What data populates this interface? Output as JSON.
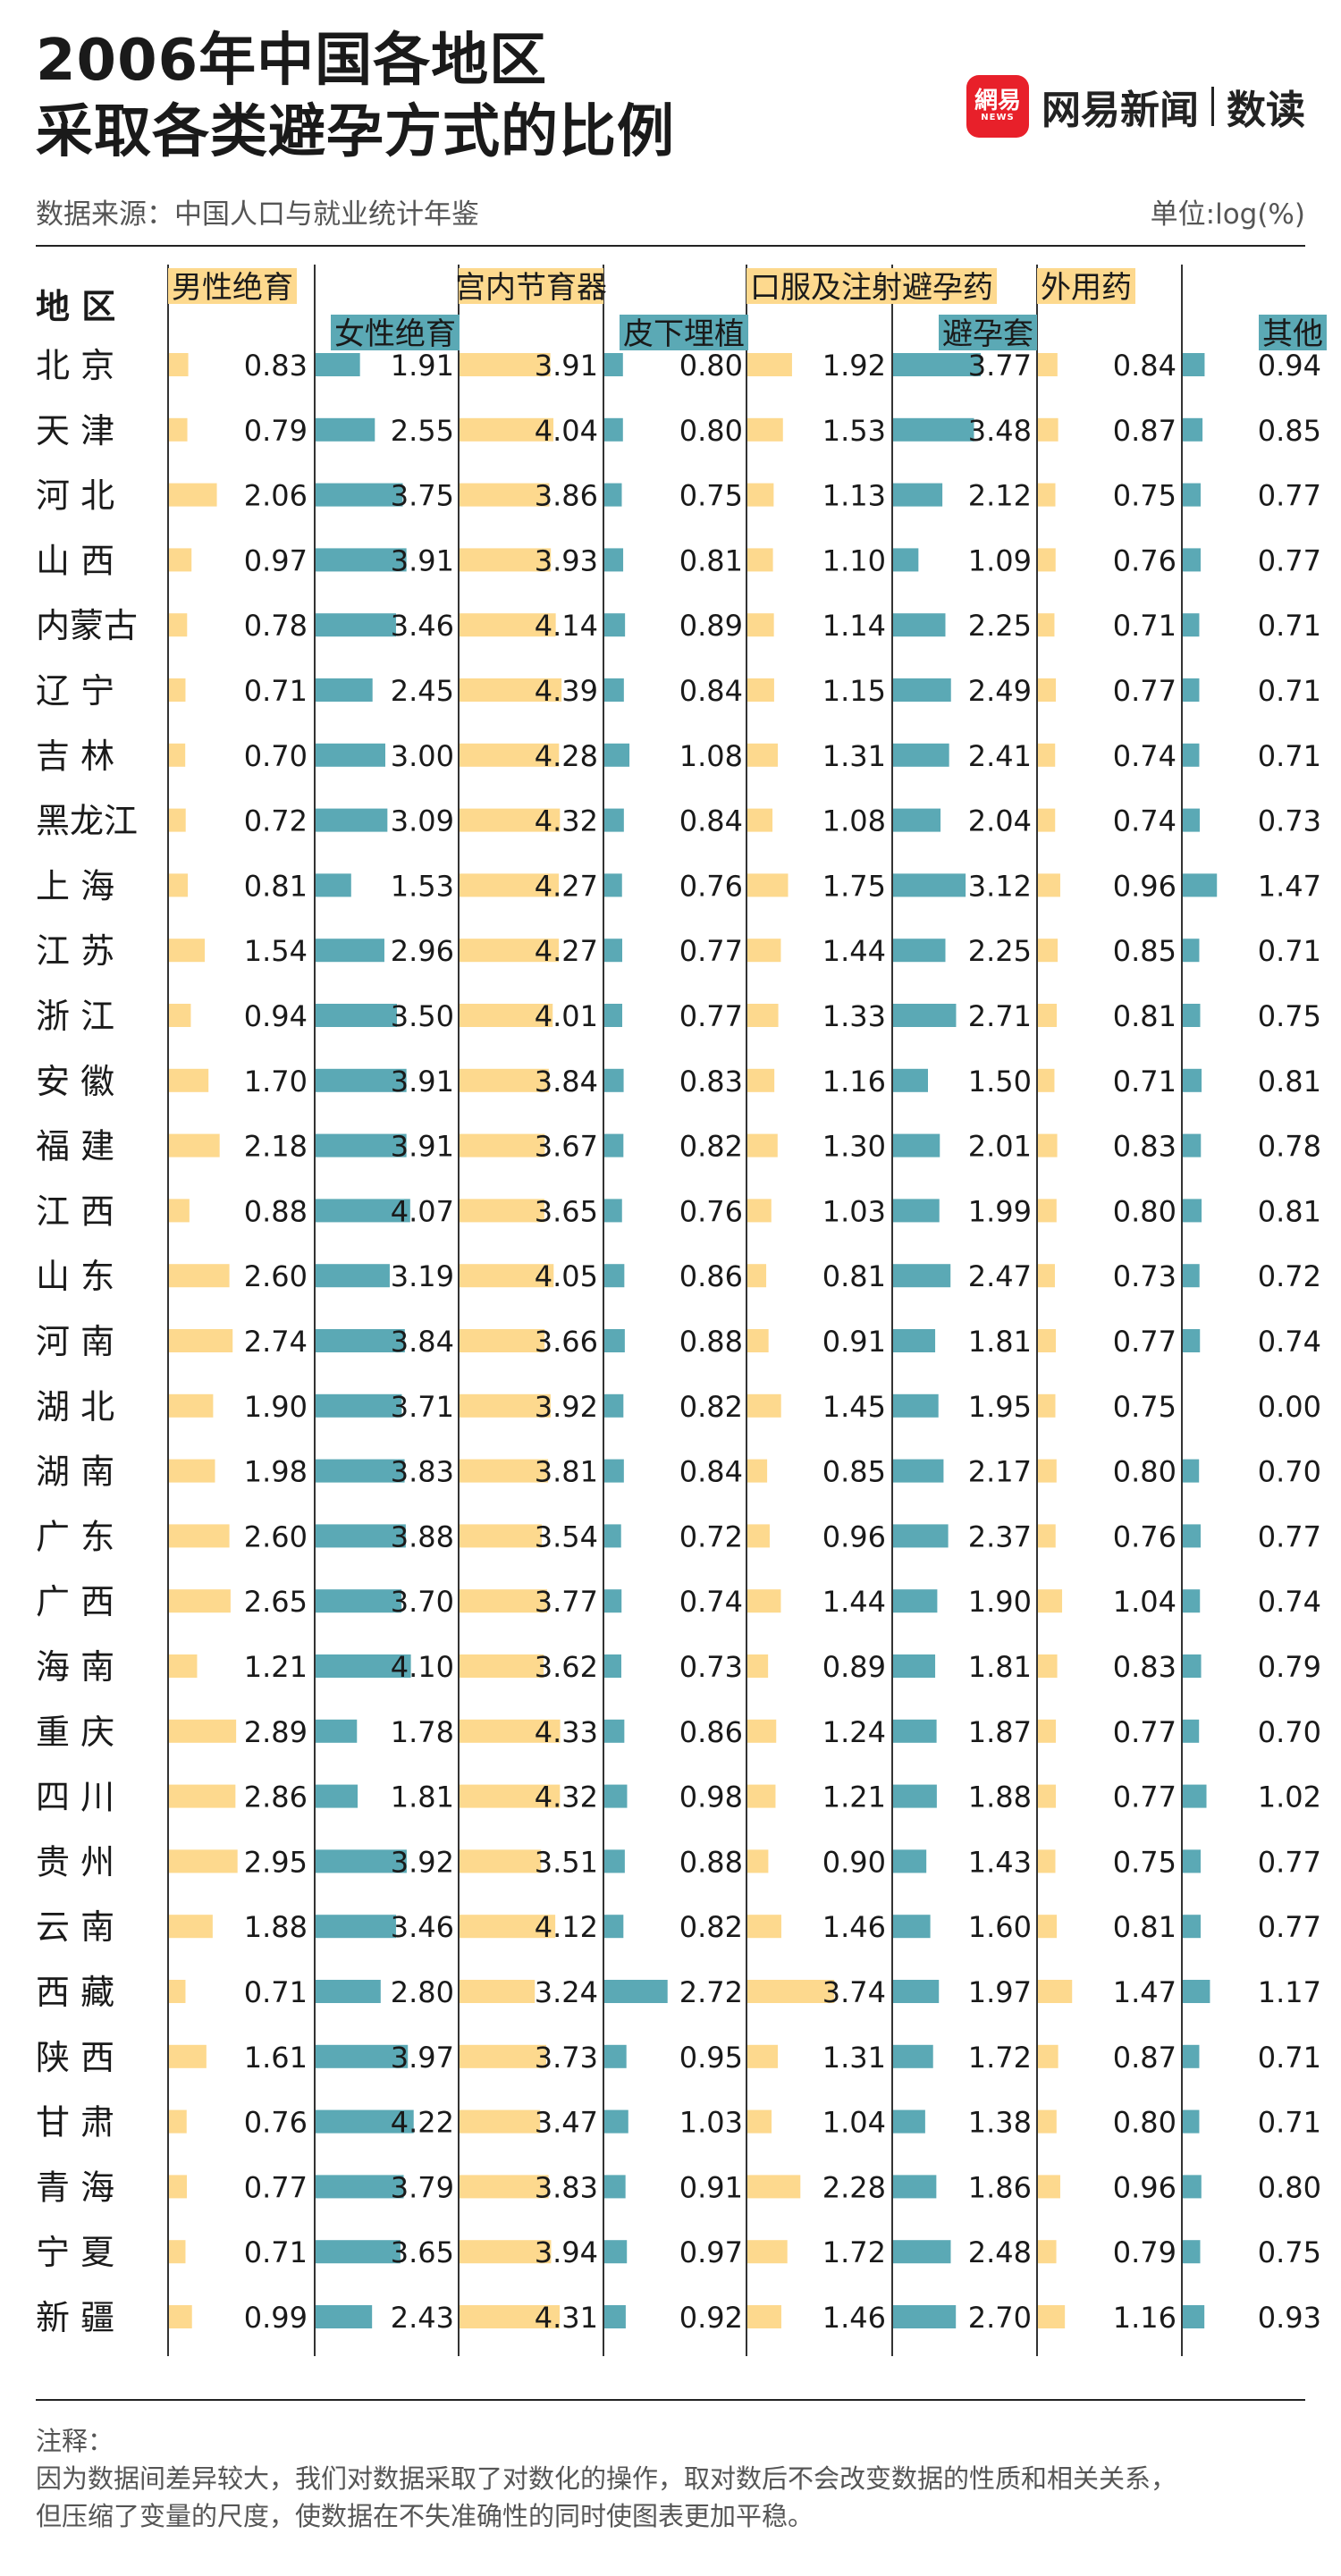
{
  "title": {
    "line1": "2006年中国各地区",
    "line2": "采取各类避孕方式的比例"
  },
  "brand": {
    "logo_text": "網易",
    "logo_sub": "NEWS",
    "name": "网易新闻",
    "sub": "数读"
  },
  "source": "数据来源：中国人口与就业统计年鉴",
  "unit": "单位:log(%)",
  "note": {
    "title": "注释：",
    "line1": "因为数据间差异较大，我们对数据采取了对数化的操作，取对数后不会改变数据的性质和相关关系，",
    "line2": "但压缩了变量的尺度，使数据在不失准确性的同时使图表更加平稳。"
  },
  "colors": {
    "yellow": "#fdd98e",
    "teal": "#5ba9b5",
    "text": "#1a1a1a",
    "muted": "#555555"
  },
  "chart_data": {
    "type": "bar",
    "region_header": "地  区",
    "categories": [
      "北  京",
      "天  津",
      "河  北",
      "山  西",
      "内蒙古",
      "辽  宁",
      "吉  林",
      "黑龙江",
      "上  海",
      "江  苏",
      "浙  江",
      "安  徽",
      "福  建",
      "江  西",
      "山  东",
      "河  南",
      "湖  北",
      "湖  南",
      "广  东",
      "广  西",
      "海  南",
      "重  庆",
      "四  川",
      "贵  州",
      "云  南",
      "西  藏",
      "陕  西",
      "甘  肃",
      "青  海",
      "宁  夏",
      "新  疆"
    ],
    "series": [
      {
        "name": "男性绝育",
        "color": "yellow",
        "values": [
          0.83,
          0.79,
          2.06,
          0.97,
          0.78,
          0.71,
          0.7,
          0.72,
          0.81,
          1.54,
          0.94,
          1.7,
          2.18,
          0.88,
          2.6,
          2.74,
          1.9,
          1.98,
          2.6,
          2.65,
          1.21,
          2.89,
          2.86,
          2.95,
          1.88,
          0.71,
          1.61,
          0.76,
          0.77,
          0.71,
          0.99
        ]
      },
      {
        "name": "女性绝育",
        "color": "teal",
        "values": [
          1.91,
          2.55,
          3.75,
          3.91,
          3.46,
          2.45,
          3.0,
          3.09,
          1.53,
          2.96,
          3.5,
          3.91,
          3.91,
          4.07,
          3.19,
          3.84,
          3.71,
          3.83,
          3.88,
          3.7,
          4.1,
          1.78,
          1.81,
          3.92,
          3.46,
          2.8,
          3.97,
          4.22,
          3.79,
          3.65,
          2.43
        ]
      },
      {
        "name": "宫内节育器",
        "color": "yellow",
        "values": [
          3.91,
          4.04,
          3.86,
          3.93,
          4.14,
          4.39,
          4.28,
          4.32,
          4.27,
          4.27,
          4.01,
          3.84,
          3.67,
          3.65,
          4.05,
          3.66,
          3.92,
          3.81,
          3.54,
          3.77,
          3.62,
          4.33,
          4.32,
          3.51,
          4.12,
          3.24,
          3.73,
          3.47,
          3.83,
          3.94,
          4.31
        ]
      },
      {
        "name": "皮下埋植",
        "color": "teal",
        "values": [
          0.8,
          0.8,
          0.75,
          0.81,
          0.89,
          0.84,
          1.08,
          0.84,
          0.76,
          0.77,
          0.77,
          0.83,
          0.82,
          0.76,
          0.86,
          0.88,
          0.82,
          0.84,
          0.72,
          0.74,
          0.73,
          0.86,
          0.98,
          0.88,
          0.82,
          2.72,
          0.95,
          1.03,
          0.91,
          0.97,
          0.92
        ]
      },
      {
        "name": "口服及注射避孕药",
        "color": "yellow",
        "values": [
          1.92,
          1.53,
          1.13,
          1.1,
          1.14,
          1.15,
          1.31,
          1.08,
          1.75,
          1.44,
          1.33,
          1.16,
          1.3,
          1.03,
          0.81,
          0.91,
          1.45,
          0.85,
          0.96,
          1.44,
          0.89,
          1.24,
          1.21,
          0.9,
          1.46,
          3.74,
          1.31,
          1.04,
          2.28,
          1.72,
          1.46
        ]
      },
      {
        "name": "避孕套",
        "color": "teal",
        "values": [
          3.77,
          3.48,
          2.12,
          1.09,
          2.25,
          2.49,
          2.41,
          2.04,
          3.12,
          2.25,
          2.71,
          1.5,
          2.01,
          1.99,
          2.47,
          1.81,
          1.95,
          2.17,
          2.37,
          1.9,
          1.81,
          1.87,
          1.88,
          1.43,
          1.6,
          1.97,
          1.72,
          1.38,
          1.86,
          2.48,
          2.7
        ]
      },
      {
        "name": "外用药",
        "color": "yellow",
        "values": [
          0.84,
          0.87,
          0.75,
          0.76,
          0.71,
          0.77,
          0.74,
          0.74,
          0.96,
          0.85,
          0.81,
          0.71,
          0.83,
          0.8,
          0.73,
          0.77,
          0.75,
          0.8,
          0.76,
          1.04,
          0.83,
          0.77,
          0.77,
          0.75,
          0.81,
          1.47,
          0.87,
          0.8,
          0.96,
          0.79,
          1.16
        ]
      },
      {
        "name": "其他",
        "color": "teal",
        "values": [
          0.94,
          0.85,
          0.77,
          0.77,
          0.71,
          0.71,
          0.71,
          0.73,
          1.47,
          0.71,
          0.75,
          0.81,
          0.78,
          0.81,
          0.72,
          0.74,
          0.0,
          0.7,
          0.77,
          0.74,
          0.79,
          0.7,
          1.02,
          0.77,
          0.77,
          1.17,
          0.71,
          0.71,
          0.8,
          0.75,
          0.93
        ]
      }
    ]
  }
}
